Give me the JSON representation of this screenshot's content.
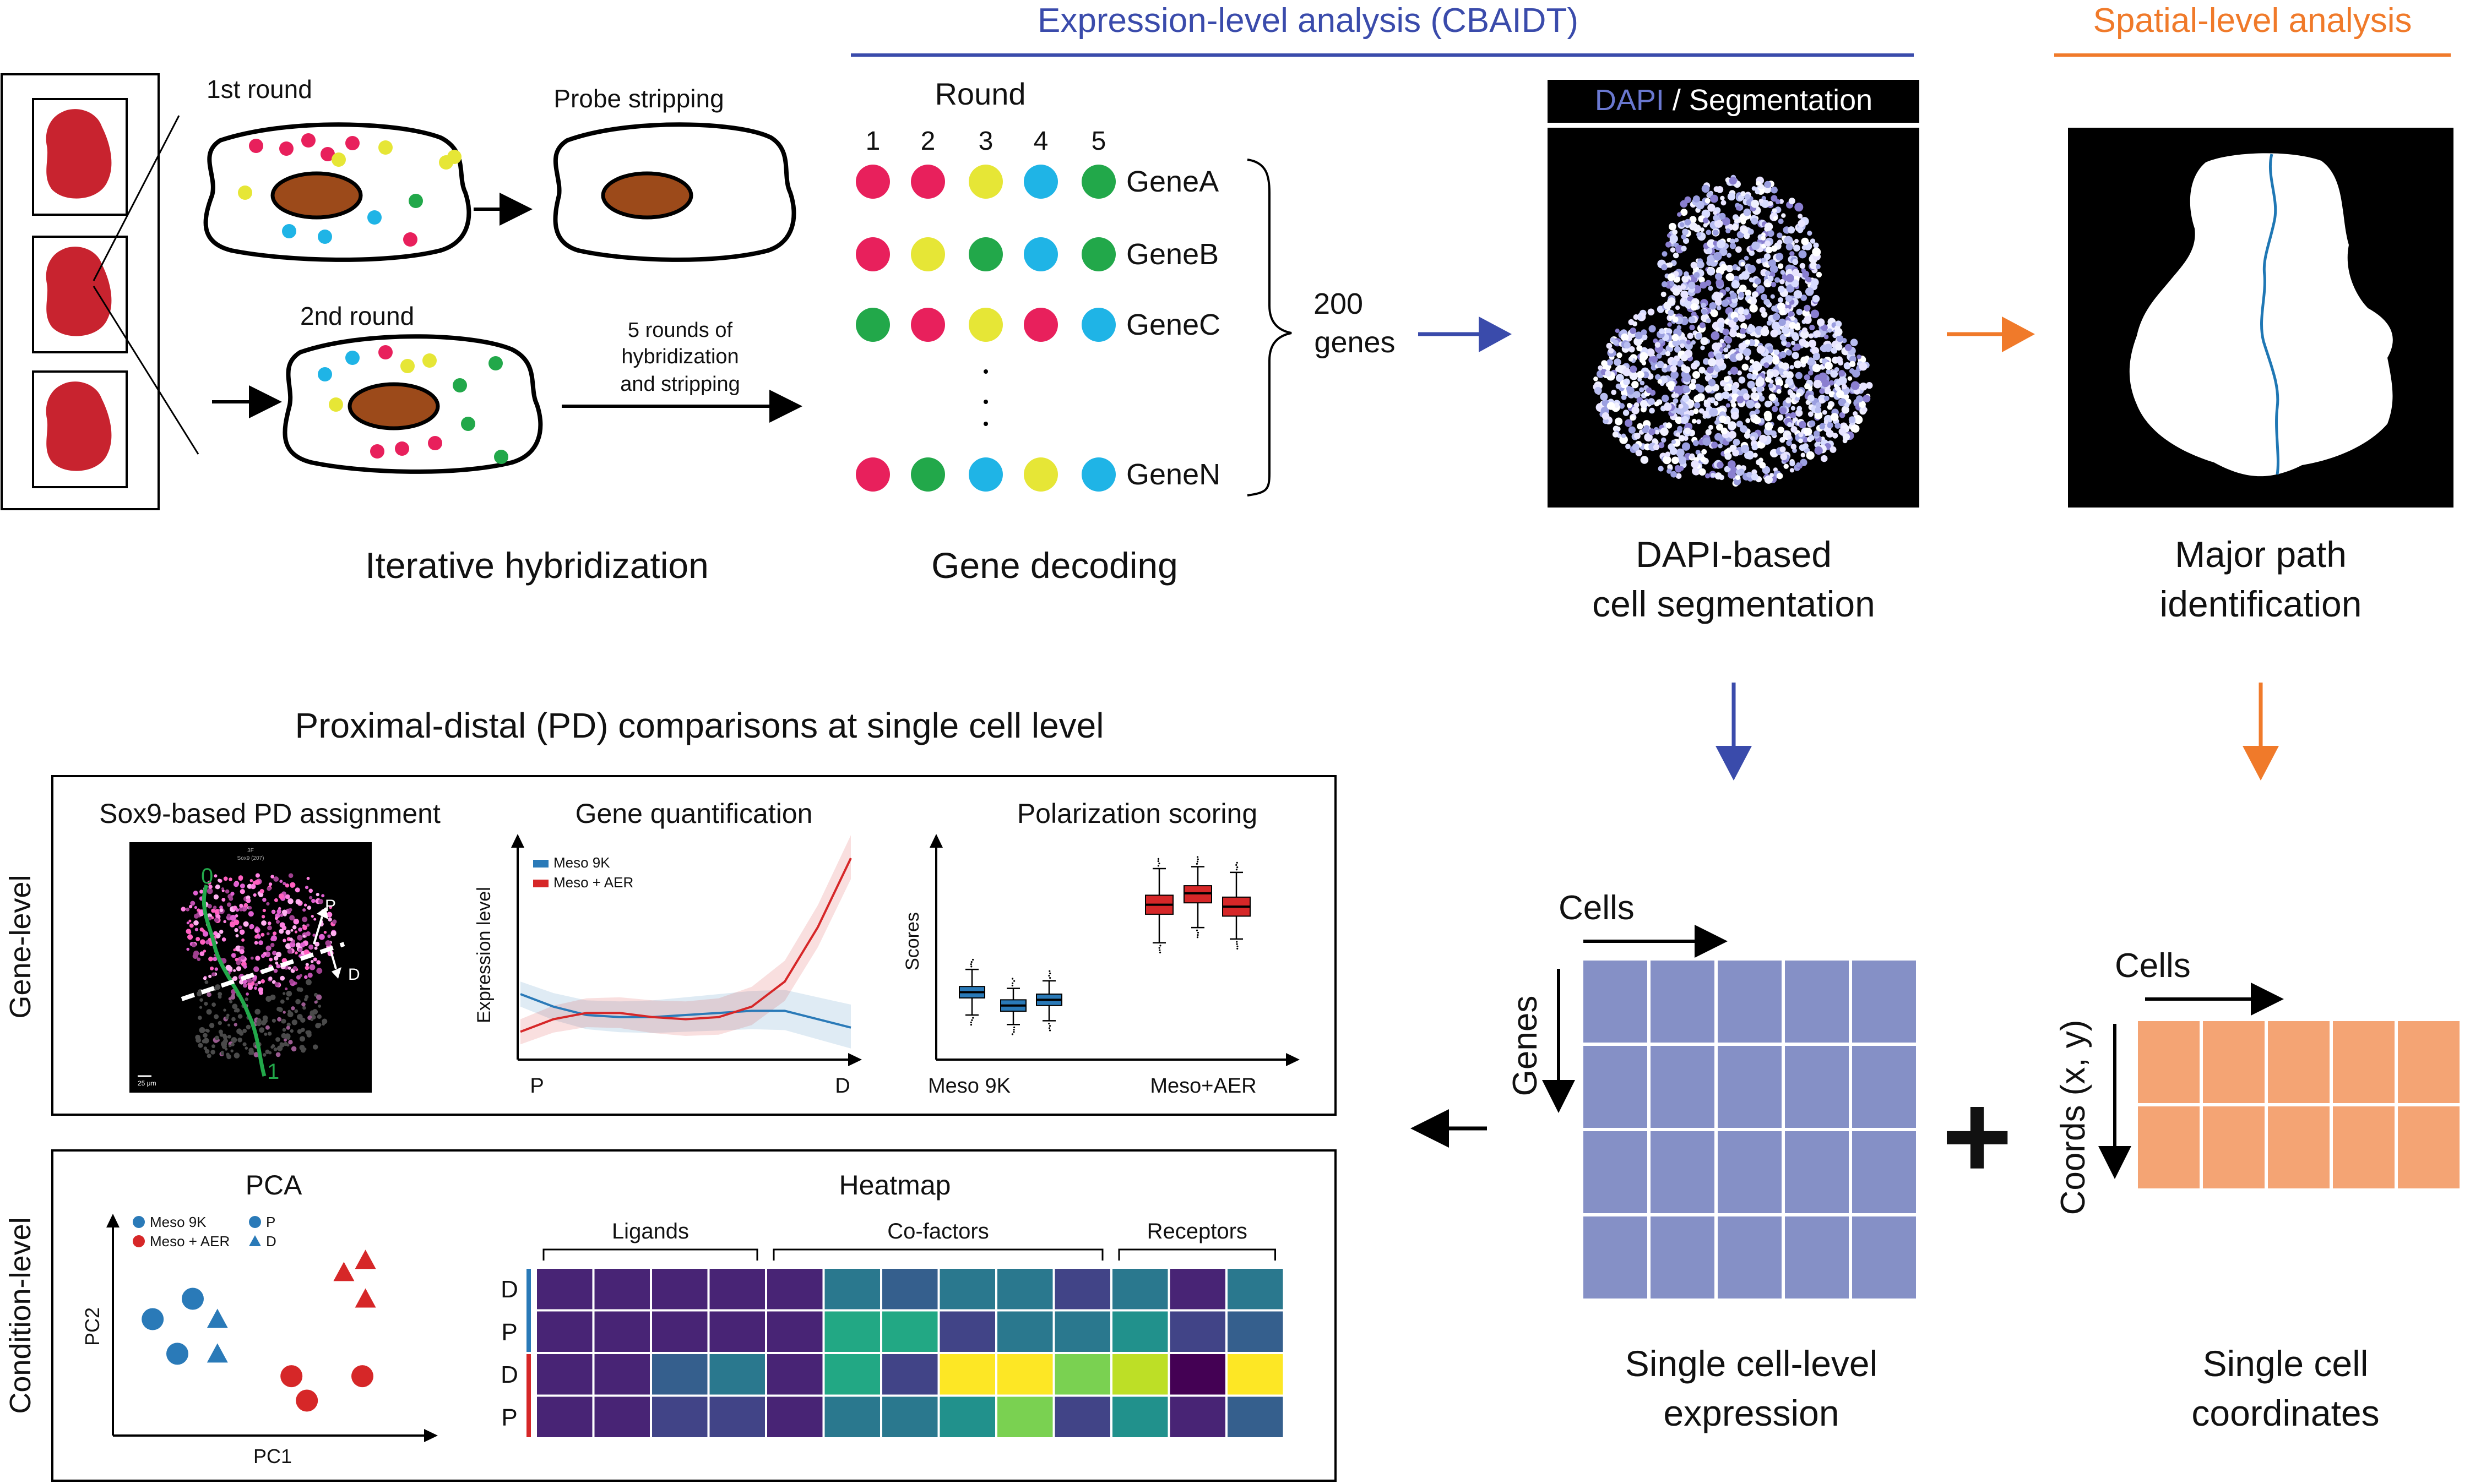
{
  "colors": {
    "red": "#e8205c",
    "yellow": "#e6e636",
    "green": "#22a84a",
    "blue": "#1fb4e6",
    "tissue": "#c8232f",
    "nucleus": "#9c4a1a",
    "expr_blue": "#3a4bab",
    "spatial_orange": "#f07a2a",
    "matrix_blue": "#8590c6",
    "matrix_orange": "#f4a474",
    "meso9k": "#2a7ab8",
    "mesoaer": "#d62728"
  },
  "sections": {
    "expression_title": "Expression-level analysis (CBAIDT)",
    "spatial_title": "Spatial-level analysis",
    "pd_title": "Proximal-distal (PD) comparisons at single cell level"
  },
  "hybridization": {
    "round1": "1st round",
    "round2": "2nd round",
    "stripping": "Probe stripping",
    "rounds_note_1": "5 rounds of",
    "rounds_note_2": "hybridization",
    "rounds_note_3": "and stripping",
    "caption": "Iterative hybridization"
  },
  "decoding": {
    "round_label": "Round",
    "round_numbers": [
      "1",
      "2",
      "3",
      "4",
      "5"
    ],
    "genes": [
      {
        "name": "GeneA",
        "codes": [
          "red",
          "red",
          "yellow",
          "blue",
          "green"
        ]
      },
      {
        "name": "GeneB",
        "codes": [
          "red",
          "yellow",
          "green",
          "blue",
          "green"
        ]
      },
      {
        "name": "GeneC",
        "codes": [
          "green",
          "red",
          "yellow",
          "red",
          "blue"
        ]
      },
      {
        "name": "GeneN",
        "codes": [
          "red",
          "green",
          "blue",
          "yellow",
          "blue"
        ]
      }
    ],
    "count_line1": "200",
    "count_line2": "genes",
    "caption": "Gene decoding"
  },
  "segmentation": {
    "header_dapi": "DAPI",
    "header_sep": " / ",
    "header_seg": "Segmentation",
    "caption_line1": "DAPI-based",
    "caption_line2": "cell segmentation"
  },
  "major_path": {
    "caption_line1": "Major path",
    "caption_line2": "identification"
  },
  "expression_matrix": {
    "cols_label": "Cells",
    "rows_label": "Genes",
    "caption_line1": "Single cell-level",
    "caption_line2": "expression"
  },
  "coords_matrix": {
    "cols_label": "Cells",
    "rows_label": "Coords (x, y)",
    "caption_line1": "Single cell",
    "caption_line2": "coordinates"
  },
  "plus_sign": "+",
  "gene_level": {
    "side_label": "Gene-level",
    "sox9": {
      "title": "Sox9-based PD assignment",
      "micro_label_1": "3F",
      "micro_label_2": "Sox9 (207)",
      "zero_label": "0",
      "one_label": "1",
      "p_label": "P",
      "d_label": "D",
      "scale_label": "25 μm"
    },
    "gene_quant": {
      "title": "Gene quantification",
      "legend": [
        "Meso 9K",
        "Meso + AER"
      ],
      "ylabel": "Expression level",
      "xstart": "P",
      "xend": "D"
    },
    "polarization": {
      "title": "Polarization scoring",
      "ylabel": "Scores",
      "group1": "Meso 9K",
      "group2": "Meso+AER"
    }
  },
  "condition_level": {
    "side_label": "Condition-level",
    "pca": {
      "title": "PCA",
      "xlabel": "PC1",
      "ylabel": "PC2",
      "legend_cond": [
        "Meso 9K",
        "Meso + AER"
      ],
      "legend_pos": [
        "P",
        "D"
      ]
    },
    "heatmap": {
      "title": "Heatmap",
      "groups": [
        "Ligands",
        "Co-factors",
        "Receptors"
      ],
      "row_labels": [
        "D",
        "P",
        "D",
        "P"
      ]
    }
  },
  "chart_data": [
    {
      "type": "line",
      "title": "Gene quantification",
      "xlabel": "",
      "ylabel": "Expression level",
      "x_tick_labels": [
        "P",
        "D"
      ],
      "x": [
        0,
        0.1,
        0.2,
        0.3,
        0.4,
        0.5,
        0.6,
        0.7,
        0.8,
        0.9,
        1.0
      ],
      "series": [
        {
          "name": "Meso 9K",
          "values": [
            0.3,
            0.24,
            0.2,
            0.19,
            0.19,
            0.2,
            0.21,
            0.22,
            0.22,
            0.18,
            0.14
          ]
        },
        {
          "name": "Meso + AER",
          "values": [
            0.12,
            0.18,
            0.21,
            0.21,
            0.19,
            0.18,
            0.19,
            0.24,
            0.36,
            0.62,
            0.95
          ]
        }
      ],
      "ylim": [
        0,
        1
      ],
      "legend": "top-left"
    },
    {
      "type": "box",
      "title": "Polarization scoring",
      "ylabel": "Scores",
      "x_tick_labels": [
        "Meso 9K",
        "Meso+AER"
      ],
      "series": [
        {
          "name": "Meso 9K",
          "boxes": [
            {
              "min": 0.22,
              "q1": 0.31,
              "median": 0.34,
              "q3": 0.37,
              "max": 0.46
            },
            {
              "min": 0.17,
              "q1": 0.24,
              "median": 0.27,
              "q3": 0.3,
              "max": 0.36
            },
            {
              "min": 0.19,
              "q1": 0.27,
              "median": 0.3,
              "q3": 0.33,
              "max": 0.4
            }
          ]
        },
        {
          "name": "Meso+AER",
          "boxes": [
            {
              "min": 0.6,
              "q1": 0.75,
              "median": 0.8,
              "q3": 0.85,
              "max": 0.99
            },
            {
              "min": 0.68,
              "q1": 0.81,
              "median": 0.86,
              "q3": 0.9,
              "max": 1.0
            },
            {
              "min": 0.62,
              "q1": 0.74,
              "median": 0.79,
              "q3": 0.84,
              "max": 0.97
            }
          ]
        }
      ],
      "ylim": [
        0,
        1.1
      ]
    },
    {
      "type": "scatter",
      "title": "PCA",
      "xlabel": "PC1",
      "ylabel": "PC2",
      "series": [
        {
          "name": "Meso 9K P",
          "x": [
            0.12,
            0.25,
            0.2
          ],
          "y": [
            0.55,
            0.65,
            0.38
          ]
        },
        {
          "name": "Meso 9K D",
          "x": [
            0.33,
            0.33
          ],
          "y": [
            0.55,
            0.38
          ]
        },
        {
          "name": "Meso + AER P",
          "x": [
            0.57,
            0.62,
            0.8
          ],
          "y": [
            0.27,
            0.15,
            0.27
          ]
        },
        {
          "name": "Meso + AER D",
          "x": [
            0.74,
            0.81,
            0.81
          ],
          "y": [
            0.78,
            0.84,
            0.65
          ]
        }
      ],
      "legend": "top-left"
    },
    {
      "type": "heatmap",
      "title": "Heatmap",
      "rows": [
        "D",
        "P",
        "D",
        "P"
      ],
      "column_groups": [
        {
          "name": "Ligands",
          "count": 4
        },
        {
          "name": "Co-factors",
          "count": 6
        },
        {
          "name": "Receptors",
          "count": 3
        }
      ],
      "values": [
        [
          0.08,
          0.05,
          0.12,
          0.08,
          0.05,
          0.38,
          0.28,
          0.38,
          0.42,
          0.18,
          0.44,
          0.08,
          0.38
        ],
        [
          0.08,
          0.05,
          0.12,
          0.08,
          0.05,
          0.62,
          0.62,
          0.15,
          0.35,
          0.35,
          0.46,
          0.18,
          0.3
        ],
        [
          0.1,
          0.06,
          0.28,
          0.42,
          0.06,
          0.62,
          0.22,
          1.0,
          1.0,
          0.78,
          0.9,
          0.02,
          1.0
        ],
        [
          0.1,
          0.12,
          0.2,
          0.22,
          0.12,
          0.36,
          0.42,
          0.48,
          0.8,
          0.2,
          0.52,
          0.1,
          0.32
        ]
      ]
    }
  ]
}
